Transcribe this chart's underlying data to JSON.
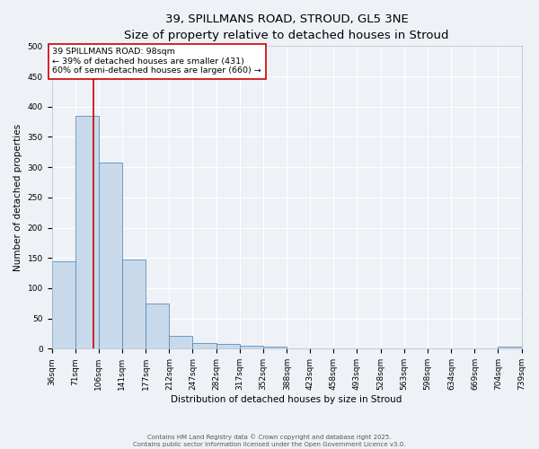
{
  "title1": "39, SPILLMANS ROAD, STROUD, GL5 3NE",
  "title2": "Size of property relative to detached houses in Stroud",
  "xlabel": "Distribution of detached houses by size in Stroud",
  "ylabel": "Number of detached properties",
  "bar_values": [
    145,
    385,
    308,
    148,
    75,
    22,
    10,
    8,
    5,
    3,
    1,
    0,
    0,
    0,
    0,
    0,
    0,
    0,
    0,
    4
  ],
  "bin_labels": [
    "36sqm",
    "71sqm",
    "106sqm",
    "141sqm",
    "177sqm",
    "212sqm",
    "247sqm",
    "282sqm",
    "317sqm",
    "352sqm",
    "388sqm",
    "423sqm",
    "458sqm",
    "493sqm",
    "528sqm",
    "563sqm",
    "598sqm",
    "634sqm",
    "669sqm",
    "704sqm",
    "739sqm"
  ],
  "bin_edges": [
    36,
    71,
    106,
    141,
    177,
    212,
    247,
    282,
    317,
    352,
    388,
    423,
    458,
    493,
    528,
    563,
    598,
    634,
    669,
    704,
    739
  ],
  "bar_color": "#c9d9ec",
  "bar_edge_color": "#5b8db8",
  "property_size": 98,
  "red_line_color": "#cc0000",
  "annotation_line1": "39 SPILLMANS ROAD: 98sqm",
  "annotation_line2": "← 39% of detached houses are smaller (431)",
  "annotation_line3": "60% of semi-detached houses are larger (660) →",
  "annotation_box_color": "#cc0000",
  "annotation_text_color": "#000000",
  "ylim": [
    0,
    500
  ],
  "yticks": [
    0,
    50,
    100,
    150,
    200,
    250,
    300,
    350,
    400,
    450,
    500
  ],
  "background_color": "#eef2f7",
  "grid_color": "#ffffff",
  "footer_text1": "Contains HM Land Registry data © Crown copyright and database right 2025.",
  "footer_text2": "Contains public sector information licensed under the Open Government Licence v3.0.",
  "title1_fontsize": 9.5,
  "title2_fontsize": 8.5,
  "xlabel_fontsize": 7.5,
  "ylabel_fontsize": 7.5,
  "tick_fontsize": 6.5,
  "annotation_fontsize": 6.8,
  "footer_fontsize": 5.0
}
